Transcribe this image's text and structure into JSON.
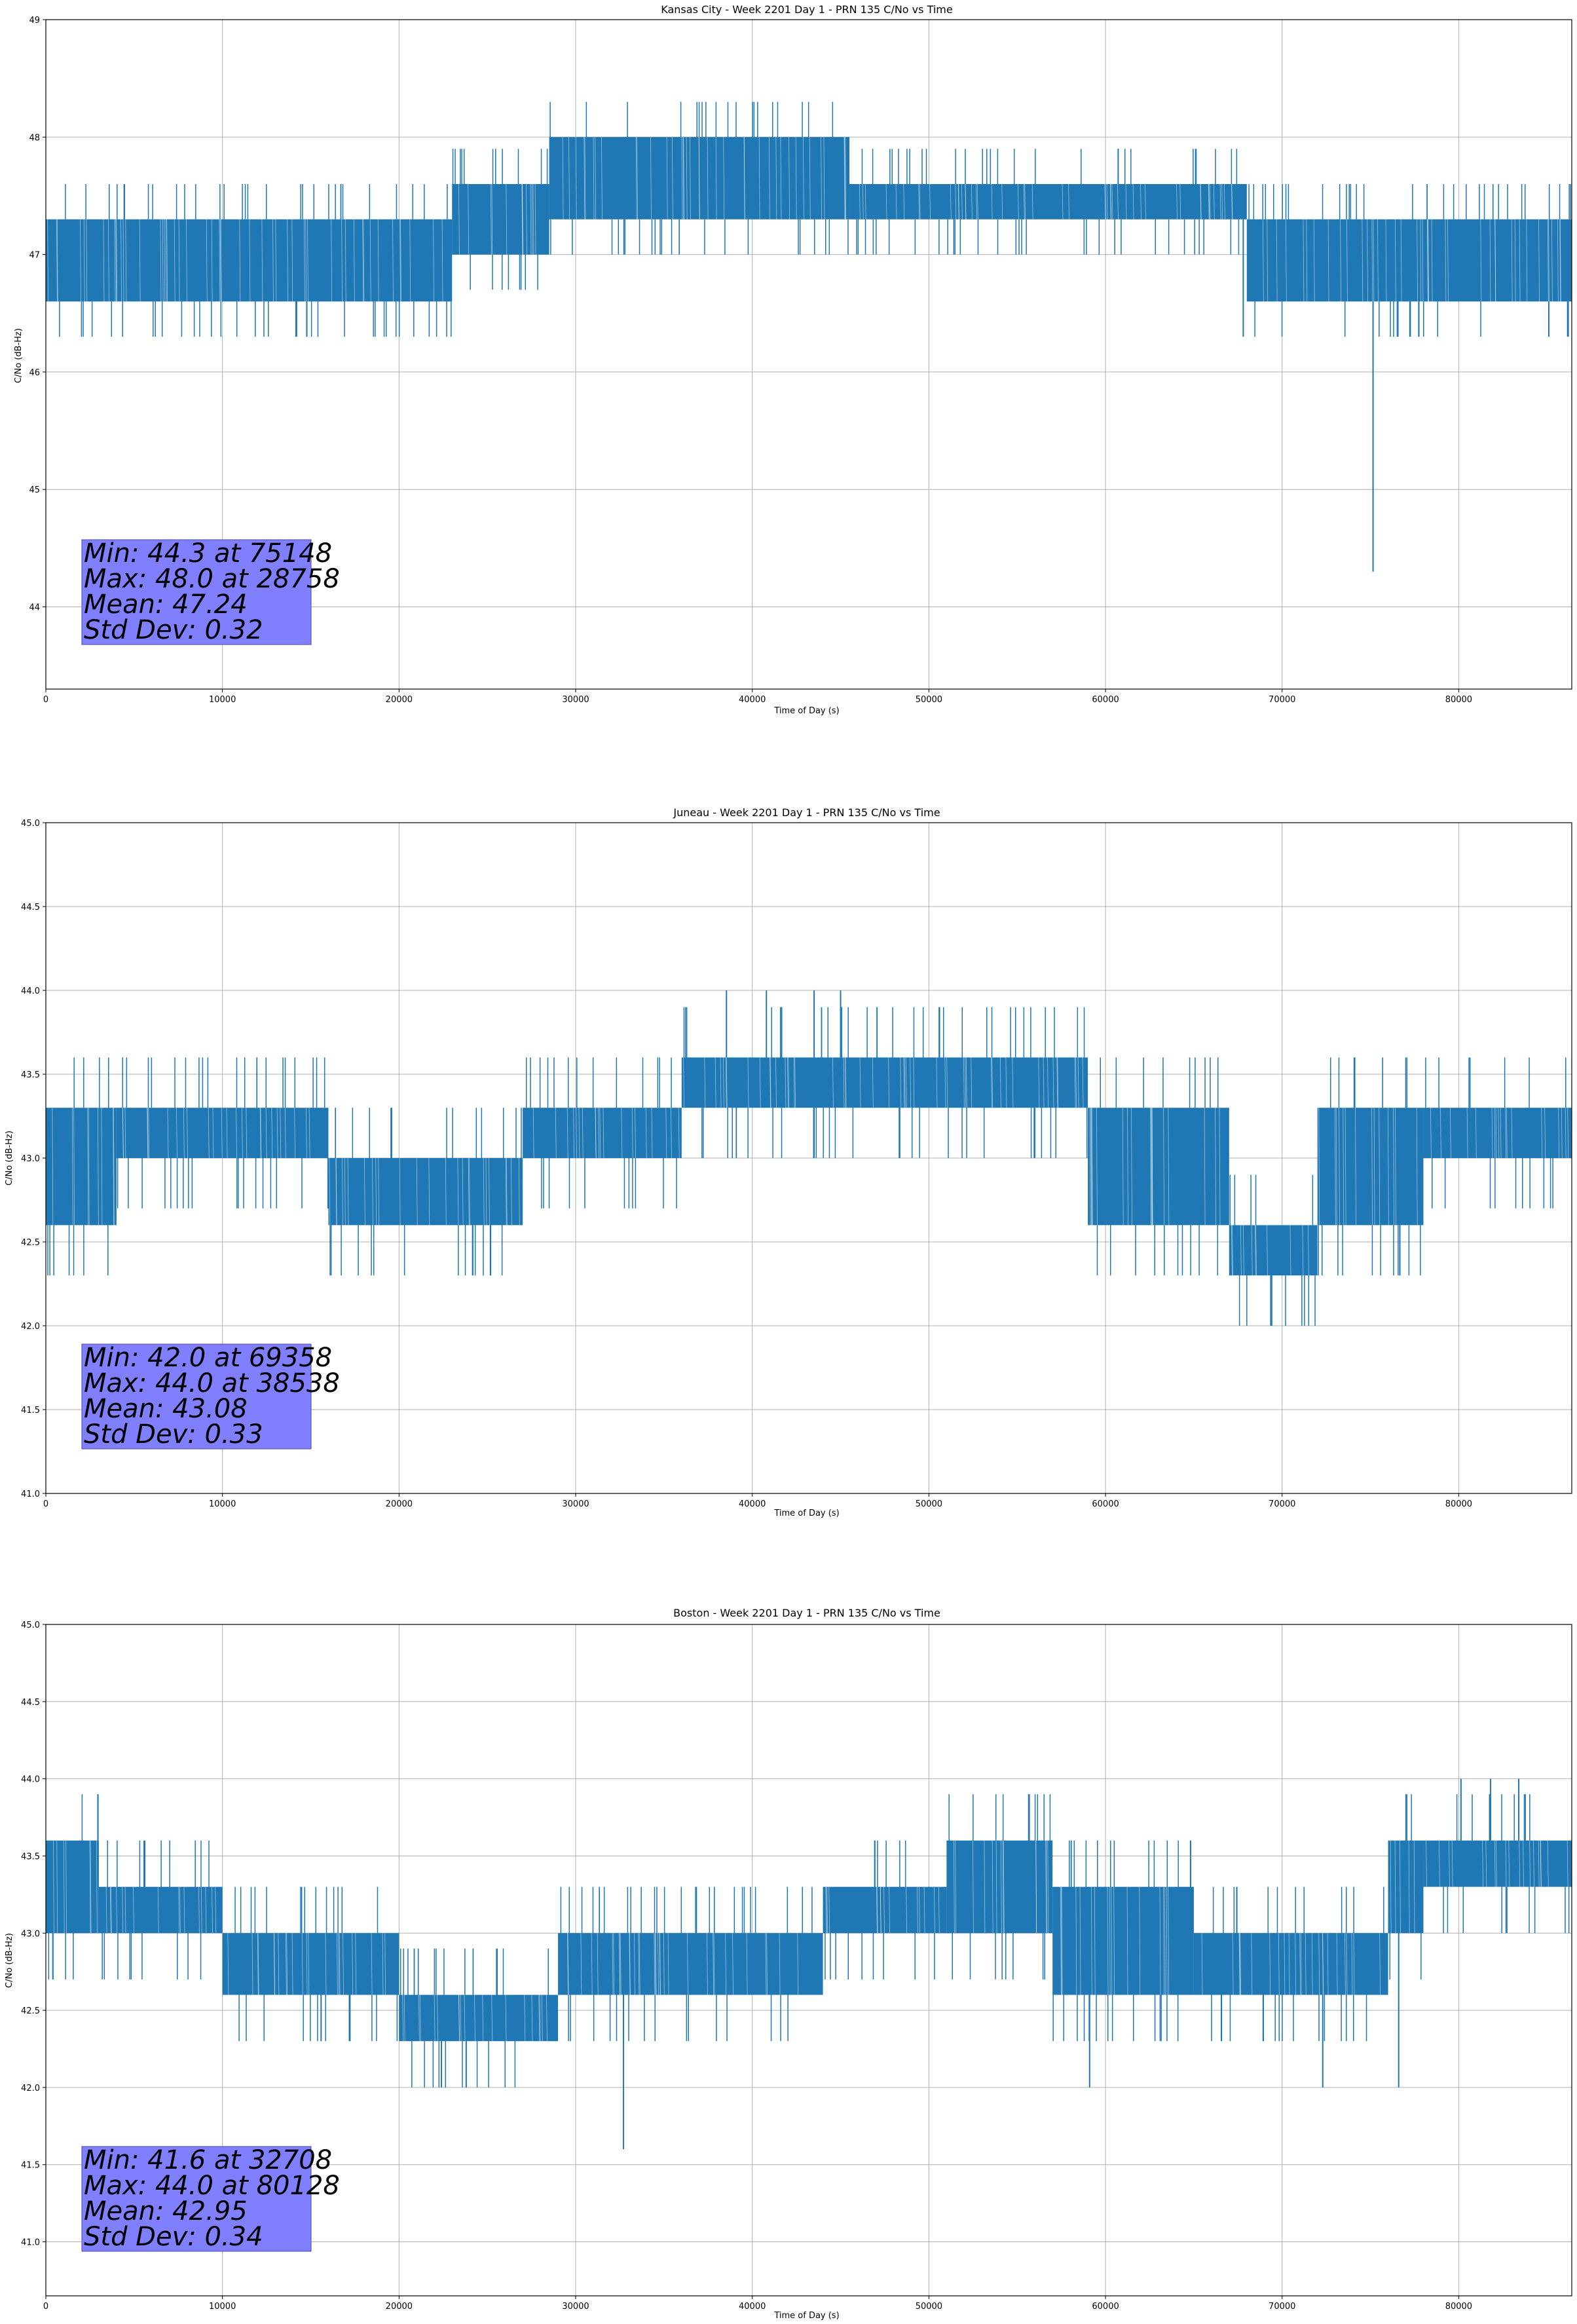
{
  "chart_data": [
    {
      "type": "line",
      "title": "Kansas City - Week 2201 Day 1 - PRN 135 C/No vs Time",
      "xlabel": "Time of Day (s)",
      "ylabel": "C/No (dB-Hz)",
      "xlim": [
        0,
        86400
      ],
      "ylim": [
        43.3,
        49.0
      ],
      "xticks": [
        0,
        10000,
        20000,
        30000,
        40000,
        50000,
        60000,
        70000,
        80000
      ],
      "yticks": [
        "44",
        "45",
        "46",
        "47",
        "48",
        "49"
      ],
      "grid": true,
      "series_color": "#1f77b4",
      "segments": [
        {
          "x0": 0,
          "x1": 23000,
          "lo": 46.6,
          "hi": 47.3
        },
        {
          "x0": 23000,
          "x1": 28500,
          "lo": 47.0,
          "hi": 47.6
        },
        {
          "x0": 28500,
          "x1": 45500,
          "lo": 47.3,
          "hi": 48.0
        },
        {
          "x0": 45500,
          "x1": 68000,
          "lo": 47.3,
          "hi": 47.6
        },
        {
          "x0": 68000,
          "x1": 86400,
          "lo": 46.6,
          "hi": 47.3
        }
      ],
      "spikes": [
        {
          "x": 75148,
          "y": 44.3
        },
        {
          "x": 67800,
          "y": 46.3
        },
        {
          "x": 86200,
          "y": 46.3
        },
        {
          "x": 85100,
          "y": 46.3
        }
      ],
      "annotation": [
        "Min: 44.3 at 75148",
        "Max: 48.0 at 28758",
        "Mean: 47.24",
        "Std Dev: 0.32"
      ]
    },
    {
      "type": "line",
      "title": "Juneau - Week 2201 Day 1 - PRN 135 C/No vs Time",
      "xlabel": "Time of Day (s)",
      "ylabel": "C/No (dB-Hz)",
      "xlim": [
        0,
        86400
      ],
      "ylim": [
        41.0,
        45.0
      ],
      "xticks": [
        0,
        10000,
        20000,
        30000,
        40000,
        50000,
        60000,
        70000,
        80000
      ],
      "yticks": [
        "41.0",
        "41.5",
        "42.0",
        "42.5",
        "43.0",
        "43.5",
        "44.0",
        "44.5",
        "45.0"
      ],
      "grid": true,
      "series_color": "#1f77b4",
      "segments": [
        {
          "x0": 0,
          "x1": 4000,
          "lo": 42.6,
          "hi": 43.3
        },
        {
          "x0": 4000,
          "x1": 16000,
          "lo": 43.0,
          "hi": 43.3
        },
        {
          "x0": 16000,
          "x1": 27000,
          "lo": 42.6,
          "hi": 43.0
        },
        {
          "x0": 27000,
          "x1": 36000,
          "lo": 43.0,
          "hi": 43.3
        },
        {
          "x0": 36000,
          "x1": 59000,
          "lo": 43.3,
          "hi": 43.6
        },
        {
          "x0": 59000,
          "x1": 67000,
          "lo": 42.6,
          "hi": 43.3
        },
        {
          "x0": 67000,
          "x1": 72000,
          "lo": 42.3,
          "hi": 42.6
        },
        {
          "x0": 72000,
          "x1": 78000,
          "lo": 42.6,
          "hi": 43.3
        },
        {
          "x0": 78000,
          "x1": 86400,
          "lo": 43.0,
          "hi": 43.3
        }
      ],
      "spikes": [
        {
          "x": 69358,
          "y": 42.0
        },
        {
          "x": 38538,
          "y": 44.0
        },
        {
          "x": 40800,
          "y": 44.0
        },
        {
          "x": 43500,
          "y": 44.0
        },
        {
          "x": 45000,
          "y": 44.0
        }
      ],
      "annotation": [
        "Min: 42.0 at 69358",
        "Max: 44.0 at 38538",
        "Mean: 43.08",
        "Std Dev: 0.33"
      ]
    },
    {
      "type": "line",
      "title": "Boston - Week 2201 Day 1 - PRN 135 C/No vs Time",
      "xlabel": "Time of Day (s)",
      "ylabel": "C/No (dB-Hz)",
      "xlim": [
        0,
        86400
      ],
      "ylim": [
        40.65,
        45.0
      ],
      "xticks": [
        0,
        10000,
        20000,
        30000,
        40000,
        50000,
        60000,
        70000,
        80000
      ],
      "yticks": [
        "41.0",
        "41.5",
        "42.0",
        "42.5",
        "43.0",
        "43.5",
        "44.0",
        "44.5",
        "45.0"
      ],
      "grid": true,
      "series_color": "#1f77b4",
      "segments": [
        {
          "x0": 0,
          "x1": 3000,
          "lo": 43.0,
          "hi": 43.6
        },
        {
          "x0": 3000,
          "x1": 10000,
          "lo": 43.0,
          "hi": 43.3
        },
        {
          "x0": 10000,
          "x1": 20000,
          "lo": 42.6,
          "hi": 43.0
        },
        {
          "x0": 20000,
          "x1": 29000,
          "lo": 42.3,
          "hi": 42.6
        },
        {
          "x0": 29000,
          "x1": 44000,
          "lo": 42.6,
          "hi": 43.0
        },
        {
          "x0": 44000,
          "x1": 51000,
          "lo": 43.0,
          "hi": 43.3
        },
        {
          "x0": 51000,
          "x1": 57000,
          "lo": 43.0,
          "hi": 43.6
        },
        {
          "x0": 57000,
          "x1": 65000,
          "lo": 42.6,
          "hi": 43.3
        },
        {
          "x0": 65000,
          "x1": 76000,
          "lo": 42.6,
          "hi": 43.0
        },
        {
          "x0": 76000,
          "x1": 78000,
          "lo": 43.0,
          "hi": 43.6
        },
        {
          "x0": 78000,
          "x1": 86400,
          "lo": 43.3,
          "hi": 43.6
        }
      ],
      "spikes": [
        {
          "x": 32708,
          "y": 41.6
        },
        {
          "x": 22400,
          "y": 42.0
        },
        {
          "x": 23800,
          "y": 42.0
        },
        {
          "x": 59100,
          "y": 42.0
        },
        {
          "x": 72300,
          "y": 42.0
        },
        {
          "x": 76600,
          "y": 42.0
        },
        {
          "x": 80128,
          "y": 44.0
        },
        {
          "x": 81800,
          "y": 44.0
        },
        {
          "x": 83400,
          "y": 44.0
        }
      ],
      "annotation": [
        "Min: 41.6 at 32708",
        "Max: 44.0 at 80128",
        "Mean: 42.95",
        "Std Dev: 0.34"
      ]
    }
  ]
}
